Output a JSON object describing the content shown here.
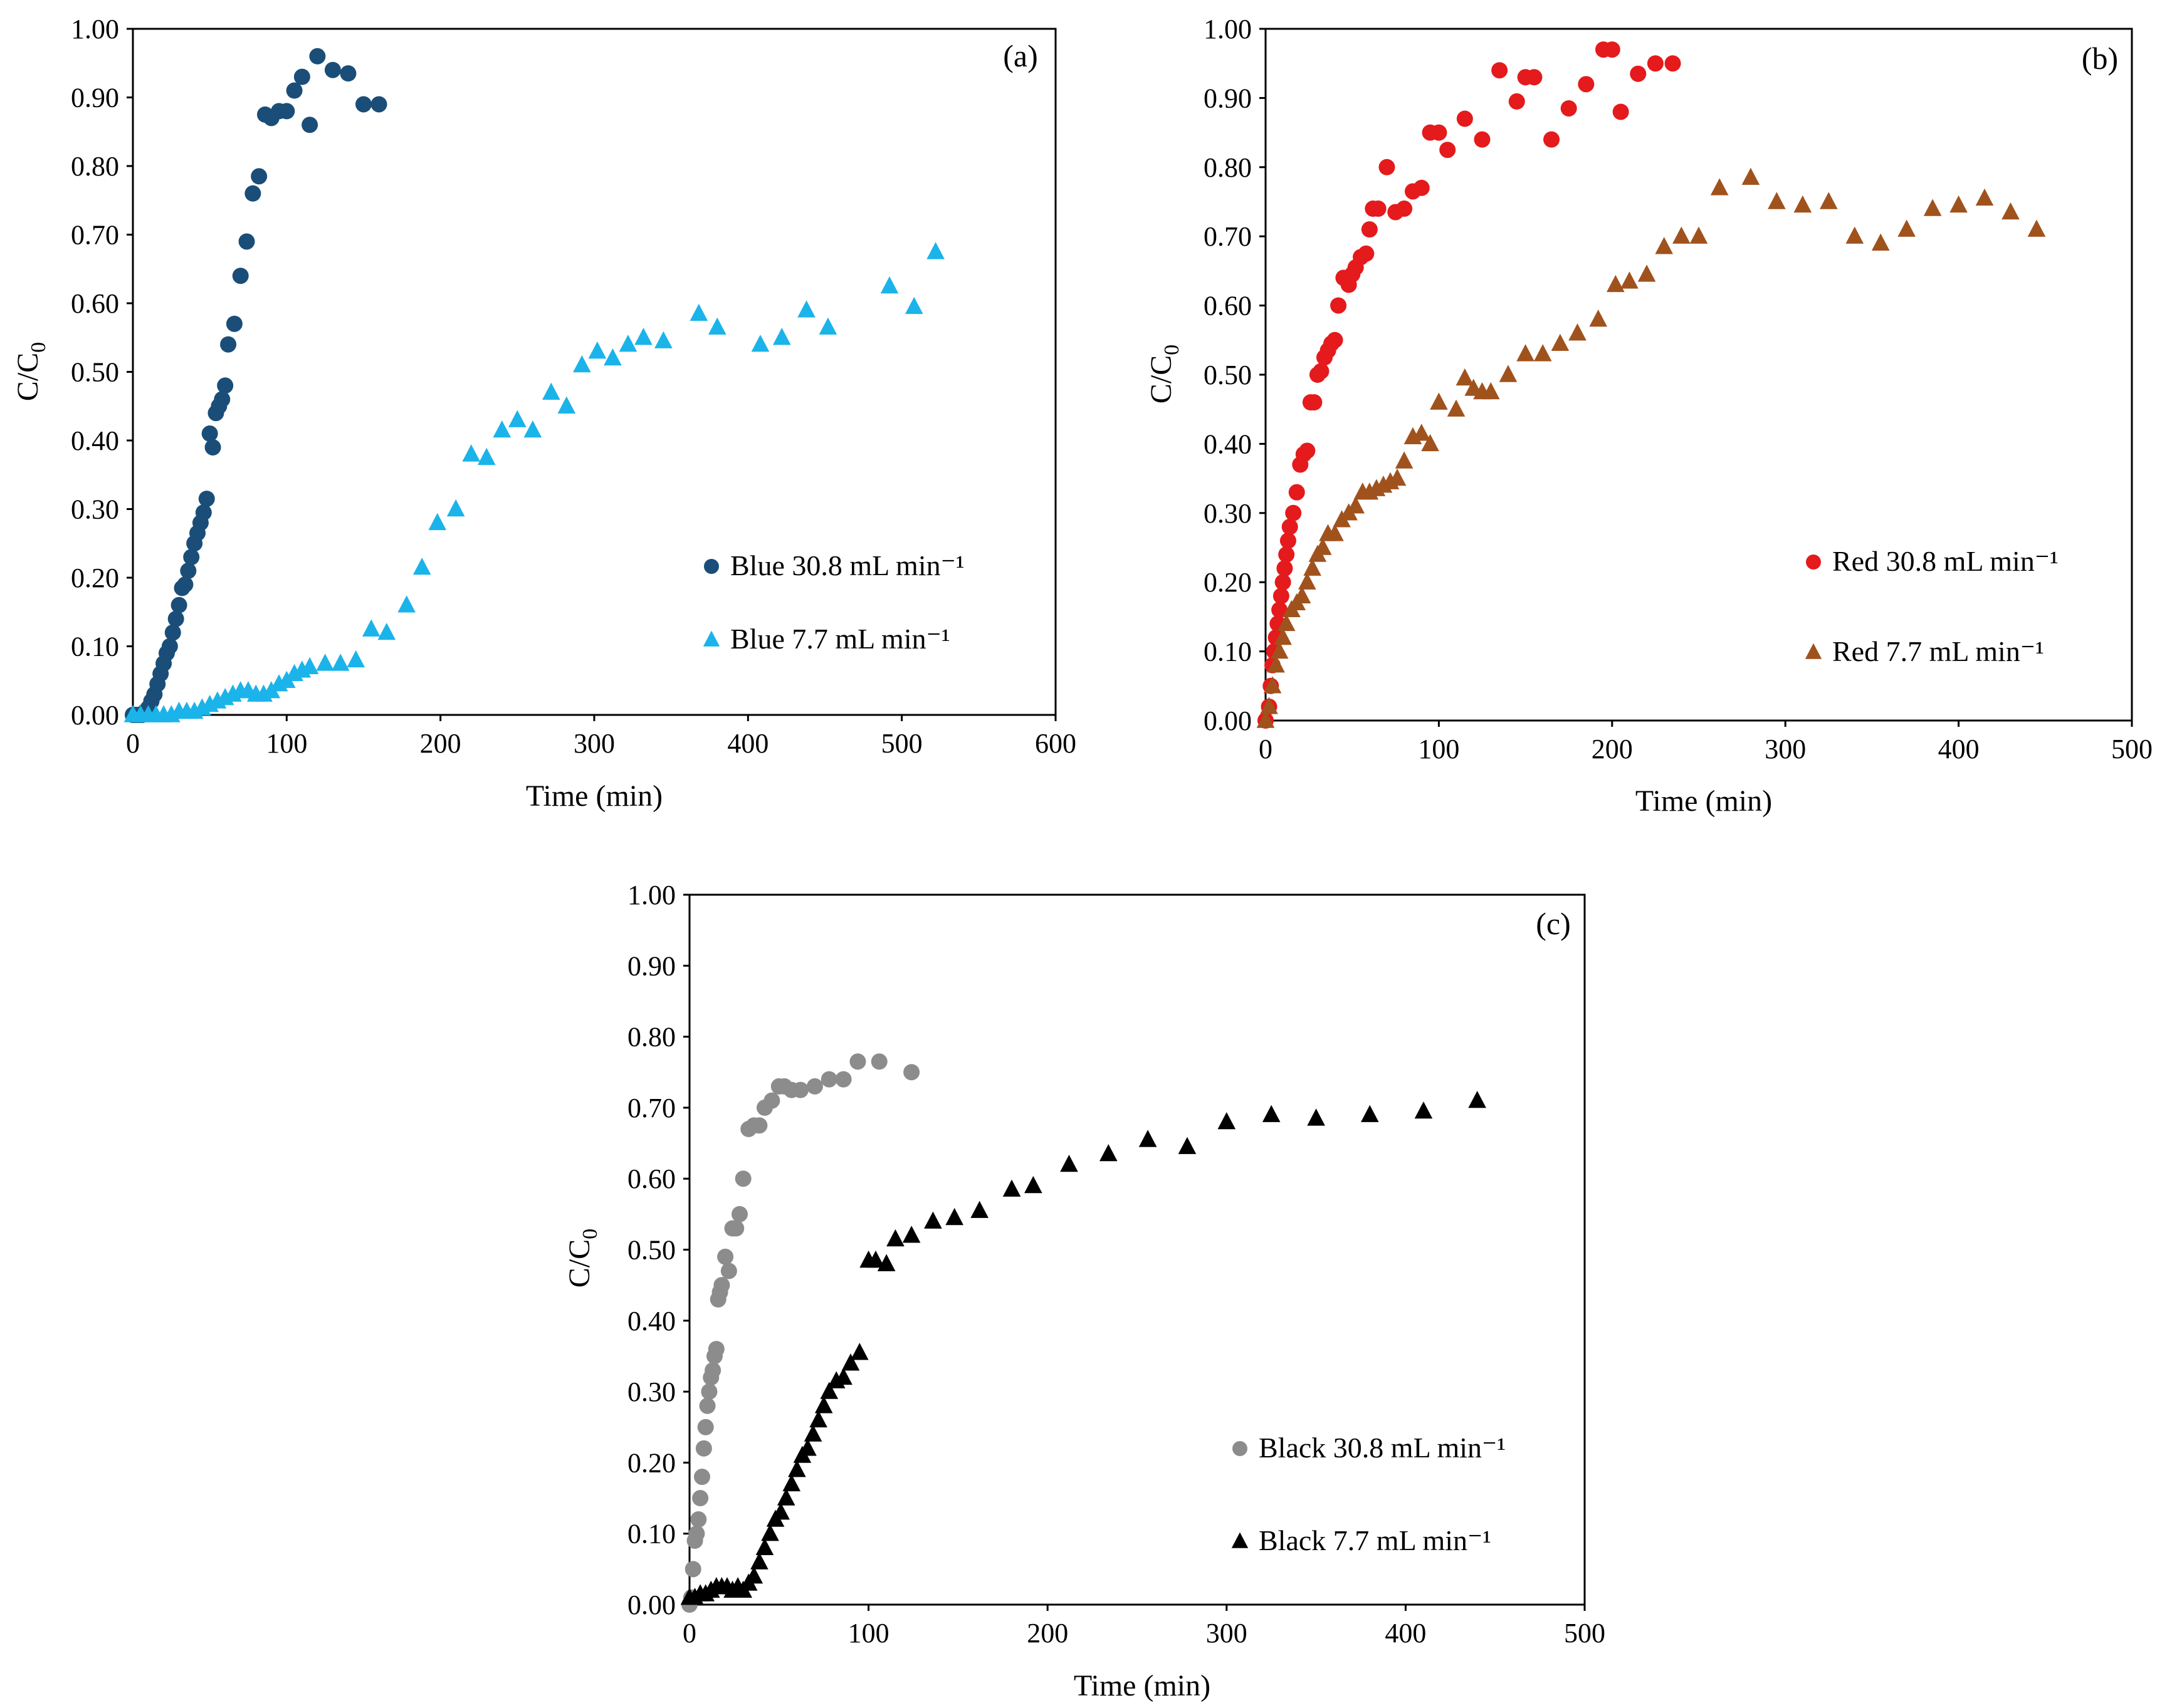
{
  "chart_data": [
    {
      "type": "scatter",
      "panel_label": "(a)",
      "xlabel": "Time (min)",
      "ylabel_main": "C/C",
      "ylabel_sub": "0",
      "xlim": [
        0,
        600
      ],
      "ylim": [
        0,
        1
      ],
      "xticks": [
        0,
        100,
        200,
        300,
        400,
        500,
        600
      ],
      "yticks": [
        "0.00",
        "0.10",
        "0.20",
        "0.30",
        "0.40",
        "0.50",
        "0.60",
        "0.70",
        "0.80",
        "0.90",
        "1.00"
      ],
      "legend_position": "lower-right",
      "series": [
        {
          "name": "Blue 30.8 mL min⁻¹",
          "marker": "circle",
          "color": "#1a4e78",
          "x": [
            0,
            2,
            4,
            6,
            8,
            10,
            12,
            14,
            16,
            18,
            20,
            22,
            24,
            26,
            28,
            30,
            32,
            34,
            36,
            38,
            40,
            42,
            44,
            46,
            48,
            50,
            52,
            54,
            56,
            58,
            60,
            62,
            66,
            70,
            74,
            78,
            82,
            86,
            90,
            95,
            100,
            105,
            110,
            115,
            120,
            130,
            140,
            150,
            160
          ],
          "y": [
            0,
            0,
            0,
            0,
            0.005,
            0.01,
            0.02,
            0.03,
            0.045,
            0.06,
            0.075,
            0.09,
            0.1,
            0.12,
            0.14,
            0.16,
            0.185,
            0.19,
            0.21,
            0.23,
            0.25,
            0.265,
            0.28,
            0.295,
            0.315,
            0.41,
            0.39,
            0.44,
            0.45,
            0.46,
            0.48,
            0.54,
            0.57,
            0.64,
            0.69,
            0.76,
            0.785,
            0.875,
            0.87,
            0.88,
            0.88,
            0.91,
            0.93,
            0.86,
            0.96,
            0.94,
            0.935,
            0.89,
            0.89
          ]
        },
        {
          "name": "Blue 7.7 mL min⁻¹",
          "marker": "triangle",
          "color": "#1ab4ea",
          "x": [
            0,
            5,
            10,
            15,
            20,
            25,
            30,
            35,
            40,
            45,
            50,
            55,
            60,
            65,
            70,
            75,
            80,
            85,
            90,
            95,
            100,
            105,
            110,
            115,
            125,
            135,
            145,
            155,
            165,
            178,
            188,
            198,
            210,
            220,
            230,
            240,
            250,
            260,
            272,
            282,
            292,
            302,
            312,
            322,
            332,
            345,
            368,
            380,
            408,
            422,
            438,
            452,
            492,
            508,
            522
          ],
          "y": [
            0,
            0,
            0,
            0,
            0,
            0,
            0.005,
            0.005,
            0.005,
            0.01,
            0.015,
            0.02,
            0.025,
            0.03,
            0.035,
            0.035,
            0.03,
            0.03,
            0.035,
            0.045,
            0.05,
            0.06,
            0.065,
            0.07,
            0.075,
            0.075,
            0.08,
            0.125,
            0.12,
            0.16,
            0.215,
            0.28,
            0.3,
            0.38,
            0.375,
            0.415,
            0.43,
            0.415,
            0.47,
            0.45,
            0.51,
            0.53,
            0.52,
            0.54,
            0.55,
            0.545,
            0.585,
            0.565,
            0.54,
            0.55,
            0.59,
            0.565,
            0.625,
            0.595,
            0.675
          ]
        }
      ],
      "legend_labels": [
        "Blue 30.8 mL min⁻¹",
        "Blue 7.7 mL min⁻¹"
      ]
    },
    {
      "type": "scatter",
      "panel_label": "(b)",
      "xlabel": "Time (min)",
      "ylabel_main": "C/C",
      "ylabel_sub": "0",
      "xlim": [
        0,
        500
      ],
      "ylim": [
        0,
        1
      ],
      "xticks": [
        0,
        100,
        200,
        300,
        400,
        500
      ],
      "yticks": [
        "0.00",
        "0.10",
        "0.20",
        "0.30",
        "0.40",
        "0.50",
        "0.60",
        "0.70",
        "0.80",
        "0.90",
        "1.00"
      ],
      "legend_position": "lower-right",
      "series": [
        {
          "name": "Red 30.8 mL min⁻¹",
          "marker": "circle",
          "color": "#e41a1c",
          "x": [
            0,
            2,
            3,
            4,
            5,
            6,
            7,
            8,
            9,
            10,
            11,
            12,
            13,
            14,
            16,
            18,
            20,
            22,
            24,
            26,
            28,
            30,
            32,
            34,
            36,
            38,
            40,
            42,
            45,
            48,
            50,
            52,
            55,
            58,
            60,
            62,
            65,
            70,
            75,
            80,
            85,
            90,
            95,
            100,
            105,
            115,
            125,
            135,
            145,
            150,
            155,
            165,
            175,
            185,
            195,
            200,
            205,
            215,
            225,
            235
          ],
          "y": [
            0,
            0.02,
            0.05,
            0.08,
            0.1,
            0.12,
            0.14,
            0.16,
            0.18,
            0.2,
            0.22,
            0.24,
            0.26,
            0.28,
            0.3,
            0.33,
            0.37,
            0.385,
            0.39,
            0.46,
            0.46,
            0.5,
            0.505,
            0.525,
            0.535,
            0.545,
            0.55,
            0.6,
            0.64,
            0.63,
            0.645,
            0.655,
            0.67,
            0.675,
            0.71,
            0.74,
            0.74,
            0.8,
            0.735,
            0.74,
            0.765,
            0.77,
            0.85,
            0.85,
            0.825,
            0.87,
            0.84,
            0.94,
            0.895,
            0.93,
            0.93,
            0.84,
            0.885,
            0.92,
            0.97,
            0.97,
            0.88,
            0.935,
            0.95,
            0.95
          ],
          "x_fixed": true
        },
        {
          "name": "Red 7.7 mL min⁻¹",
          "marker": "triangle",
          "color": "#a0521d",
          "x": [
            0,
            2,
            4,
            6,
            8,
            10,
            12,
            15,
            18,
            21,
            24,
            27,
            30,
            33,
            36,
            40,
            44,
            48,
            52,
            56,
            60,
            64,
            68,
            72,
            76,
            80,
            85,
            90,
            95,
            100,
            110,
            115,
            120,
            125,
            130,
            140,
            150,
            160,
            170,
            180,
            192,
            202,
            210,
            220,
            230,
            240,
            250,
            262,
            280,
            295,
            310,
            325,
            340,
            355,
            370,
            385,
            400,
            415,
            430,
            445
          ],
          "y": [
            0,
            0.02,
            0.05,
            0.08,
            0.1,
            0.12,
            0.14,
            0.16,
            0.17,
            0.18,
            0.2,
            0.22,
            0.24,
            0.25,
            0.27,
            0.27,
            0.29,
            0.3,
            0.31,
            0.33,
            0.33,
            0.335,
            0.34,
            0.345,
            0.35,
            0.375,
            0.41,
            0.415,
            0.4,
            0.46,
            0.45,
            0.495,
            0.48,
            0.475,
            0.475,
            0.5,
            0.53,
            0.53,
            0.545,
            0.56,
            0.58,
            0.63,
            0.635,
            0.645,
            0.685,
            0.7,
            0.7,
            0.77,
            0.785,
            0.75,
            0.745,
            0.75,
            0.7,
            0.69,
            0.71,
            0.74,
            0.745,
            0.755,
            0.735,
            0.71
          ]
        }
      ],
      "legend_labels": [
        "Red 30.8 mL min⁻¹",
        "Red 7.7 mL min⁻¹"
      ]
    },
    {
      "type": "scatter",
      "panel_label": "(c)",
      "xlabel": "Time (min)",
      "ylabel_main": "C/C",
      "ylabel_sub": "0",
      "xlim": [
        0,
        500
      ],
      "ylim": [
        0,
        1
      ],
      "xticks": [
        0,
        100,
        200,
        300,
        400,
        500
      ],
      "yticks": [
        "0.00",
        "0.10",
        "0.20",
        "0.30",
        "0.40",
        "0.50",
        "0.60",
        "0.70",
        "0.80",
        "0.90",
        "1.00"
      ],
      "legend_position": "lower-right",
      "series": [
        {
          "name": "Black 30.8 mL min⁻¹",
          "marker": "circle",
          "color": "#8c8c8c",
          "x": [
            0,
            1,
            2,
            3,
            4,
            5,
            6,
            7,
            8,
            9,
            10,
            11,
            12,
            13,
            14,
            15,
            16,
            17,
            18,
            20,
            22,
            24,
            26,
            28,
            30,
            33,
            36,
            39,
            42,
            46,
            50,
            53,
            57,
            62,
            70,
            78,
            86,
            94,
            106,
            124
          ],
          "y": [
            0,
            0.01,
            0.05,
            0.09,
            0.1,
            0.12,
            0.15,
            0.18,
            0.22,
            0.25,
            0.28,
            0.3,
            0.32,
            0.33,
            0.35,
            0.36,
            0.43,
            0.44,
            0.45,
            0.49,
            0.47,
            0.53,
            0.53,
            0.55,
            0.6,
            0.67,
            0.675,
            0.675,
            0.7,
            0.71,
            0.73,
            0.73,
            0.725,
            0.725,
            0.73,
            0.74,
            0.74,
            0.765,
            0.765,
            0.75
          ]
        },
        {
          "name": "Black 7.7 mL min⁻¹",
          "marker": "triangle",
          "color": "#000000",
          "x": [
            0,
            3,
            6,
            9,
            12,
            15,
            18,
            21,
            24,
            27,
            30,
            33,
            36,
            39,
            42,
            45,
            48,
            51,
            54,
            57,
            60,
            63,
            66,
            69,
            72,
            75,
            78,
            82,
            86,
            90,
            95,
            100,
            104,
            110,
            115,
            124,
            136,
            148,
            162,
            180,
            192,
            212,
            234,
            256,
            278,
            300,
            325,
            350,
            380,
            410,
            440
          ],
          "y": [
            0.01,
            0.01,
            0.015,
            0.015,
            0.02,
            0.025,
            0.025,
            0.025,
            0.02,
            0.025,
            0.02,
            0.03,
            0.04,
            0.06,
            0.08,
            0.1,
            0.12,
            0.13,
            0.15,
            0.17,
            0.19,
            0.21,
            0.22,
            0.24,
            0.26,
            0.28,
            0.3,
            0.315,
            0.32,
            0.34,
            0.355,
            0.485,
            0.485,
            0.48,
            0.515,
            0.52,
            0.54,
            0.545,
            0.555,
            0.585,
            0.59,
            0.62,
            0.635,
            0.655,
            0.645,
            0.68,
            0.69,
            0.685,
            0.69,
            0.695,
            0.71
          ]
        }
      ],
      "legend_labels": [
        "Black 30.8 mL min⁻¹",
        "Black 7.7 mL min⁻¹"
      ]
    }
  ]
}
